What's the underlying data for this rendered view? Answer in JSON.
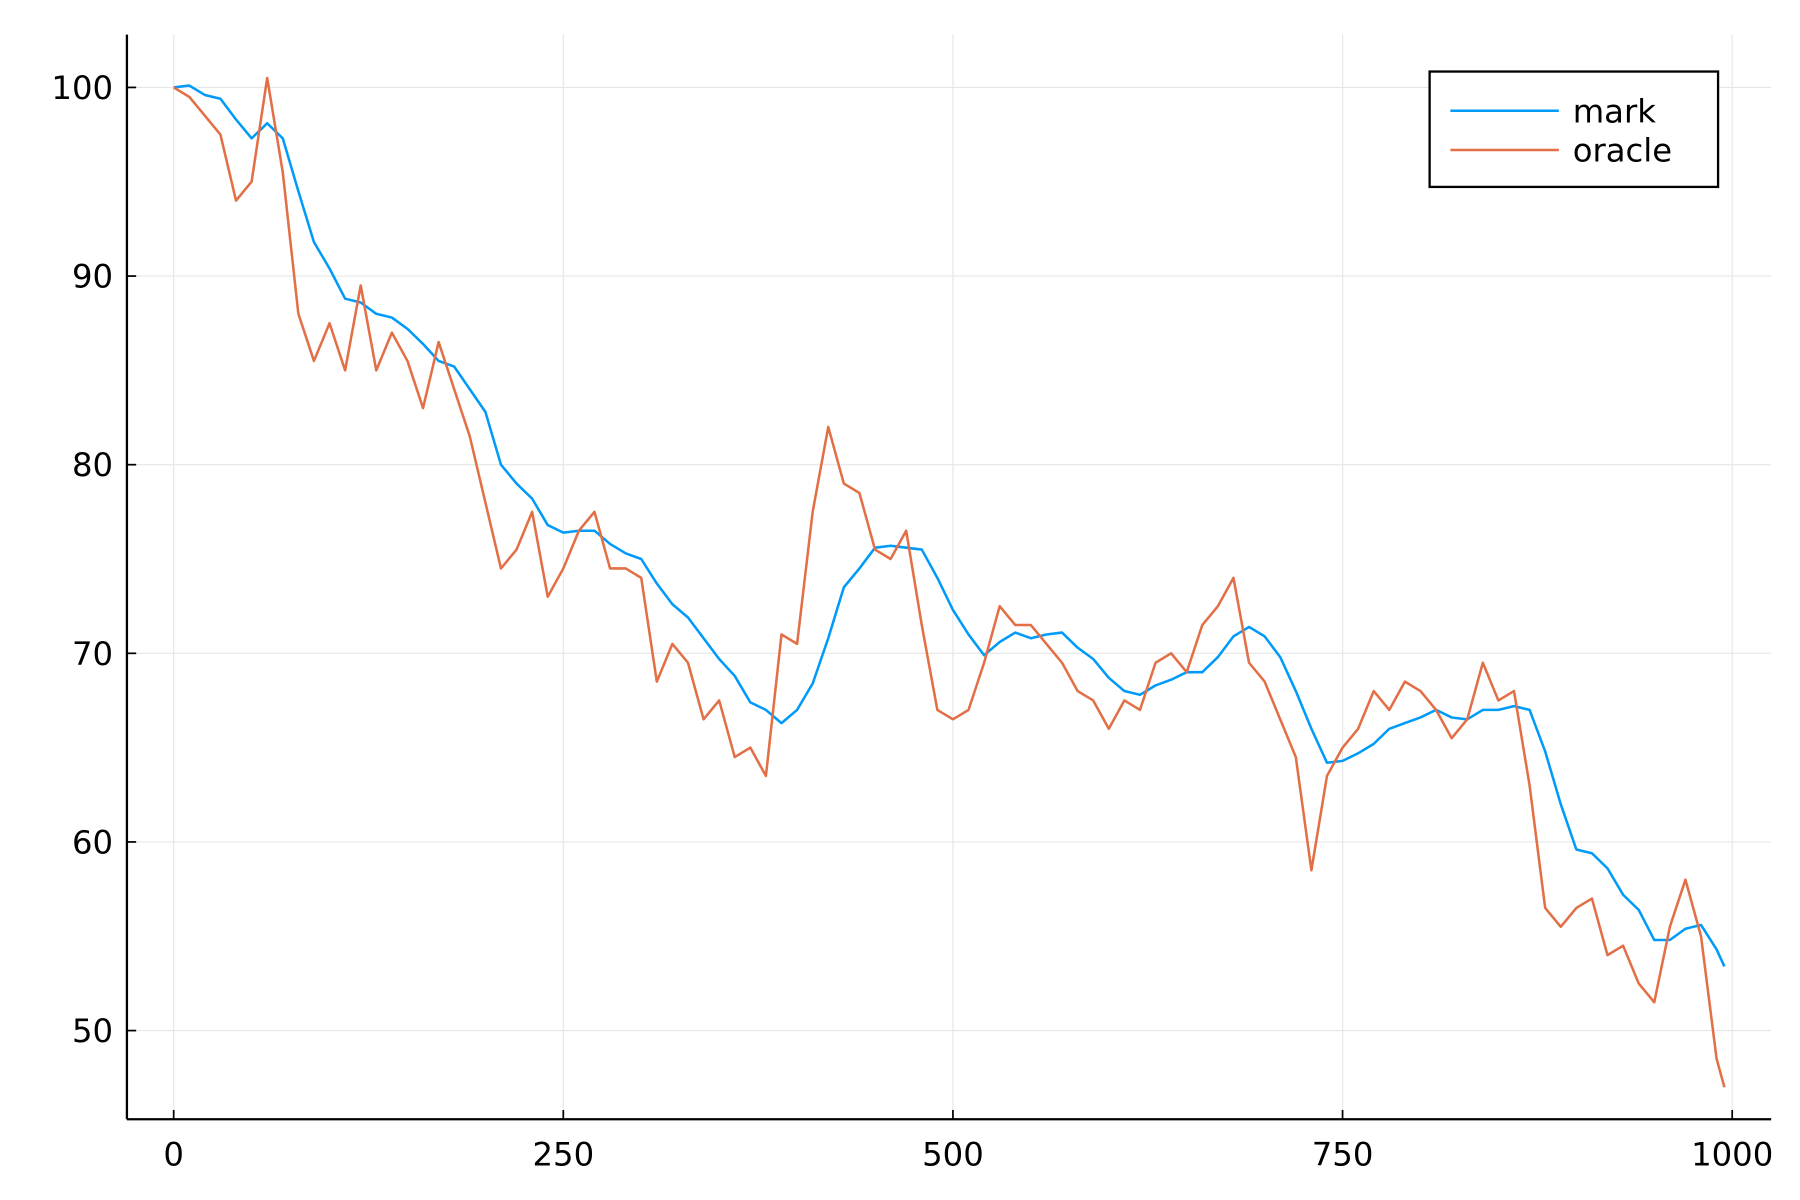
{
  "chart_data": {
    "type": "line",
    "x": [
      0,
      10,
      20,
      30,
      40,
      50,
      60,
      70,
      80,
      90,
      100,
      110,
      120,
      130,
      140,
      150,
      160,
      170,
      180,
      190,
      200,
      210,
      220,
      230,
      240,
      250,
      260,
      270,
      280,
      290,
      300,
      310,
      320,
      330,
      340,
      350,
      360,
      370,
      380,
      390,
      400,
      410,
      420,
      430,
      440,
      450,
      460,
      470,
      480,
      490,
      500,
      510,
      520,
      530,
      540,
      550,
      560,
      570,
      580,
      590,
      600,
      610,
      620,
      630,
      640,
      650,
      660,
      670,
      680,
      690,
      700,
      710,
      720,
      730,
      740,
      750,
      760,
      770,
      780,
      790,
      800,
      810,
      820,
      830,
      840,
      850,
      860,
      870,
      880,
      890,
      900,
      910,
      920,
      930,
      940,
      950,
      960,
      970,
      980,
      990,
      995
    ],
    "series": [
      {
        "name": "mark",
        "color": "#009af9",
        "values": [
          100,
          100.1,
          99.6,
          99.4,
          98.3,
          97.3,
          98.1,
          97.3,
          94.5,
          91.8,
          90.4,
          88.8,
          88.6,
          88.0,
          87.8,
          87.2,
          86.4,
          85.5,
          85.2,
          84.0,
          82.8,
          80.0,
          79.0,
          78.2,
          76.8,
          76.4,
          76.5,
          76.5,
          75.8,
          75.3,
          75.0,
          73.7,
          72.6,
          71.9,
          70.8,
          69.7,
          68.8,
          67.4,
          67.0,
          66.3,
          67.0,
          68.4,
          70.8,
          73.5,
          74.5,
          75.6,
          75.7,
          75.6,
          75.5,
          74.0,
          72.3,
          71.0,
          69.9,
          70.6,
          71.1,
          70.8,
          71.0,
          71.1,
          70.3,
          69.7,
          68.7,
          68.0,
          67.8,
          68.3,
          68.6,
          69.0,
          69.0,
          69.8,
          70.9,
          71.4,
          70.9,
          69.8,
          68.0,
          66.0,
          64.2,
          64.3,
          64.7,
          65.2,
          66.0,
          66.3,
          66.6,
          67.0,
          66.6,
          66.5,
          67.0,
          67.0,
          67.2,
          67.0,
          64.8,
          62.0,
          59.6,
          59.4,
          58.6,
          57.2,
          56.4,
          54.8,
          54.8,
          55.4,
          55.6,
          54.3,
          53.4
        ]
      },
      {
        "name": "oracle",
        "color": "#e26f46",
        "values": [
          100,
          99.5,
          98.5,
          97.5,
          94.0,
          95.0,
          100.5,
          95.5,
          88.0,
          85.5,
          87.5,
          85.0,
          89.5,
          85.0,
          87.0,
          85.5,
          83.0,
          86.5,
          84.0,
          81.5,
          78.0,
          74.5,
          75.5,
          77.5,
          73.0,
          74.5,
          76.5,
          77.5,
          74.5,
          74.5,
          74.0,
          68.5,
          70.5,
          69.5,
          66.5,
          67.5,
          64.5,
          65.0,
          63.5,
          71.0,
          70.5,
          77.5,
          82.0,
          79.0,
          78.5,
          75.5,
          75.0,
          76.5,
          71.5,
          67.0,
          66.5,
          67.0,
          69.5,
          72.5,
          71.5,
          71.5,
          70.5,
          69.5,
          68.0,
          67.5,
          66.0,
          67.5,
          67.0,
          69.5,
          70.0,
          69.0,
          71.5,
          72.5,
          74.0,
          69.5,
          68.5,
          66.5,
          64.5,
          58.5,
          63.5,
          65.0,
          66.0,
          68.0,
          67.0,
          68.5,
          68.0,
          67.0,
          65.5,
          66.5,
          69.5,
          67.5,
          68.0,
          63.0,
          56.5,
          55.5,
          56.5,
          57.0,
          54.0,
          54.5,
          52.5,
          51.5,
          55.5,
          58.0,
          55.0,
          48.5,
          47.0
        ]
      }
    ],
    "xlim": [
      -30,
      1025
    ],
    "ylim": [
      45.3,
      102.8
    ],
    "xticks": [
      0,
      250,
      500,
      750,
      1000
    ],
    "yticks": [
      50,
      60,
      70,
      80,
      90,
      100
    ],
    "grid": true,
    "legend": "topright"
  }
}
